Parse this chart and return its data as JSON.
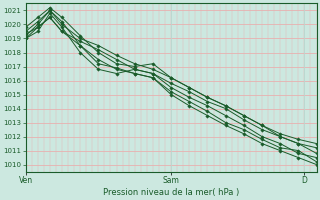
{
  "title": "Pression niveau de la mer( hPa )",
  "ylim": [
    1009.5,
    1021.5
  ],
  "xlim": [
    0,
    48
  ],
  "yticks": [
    1010,
    1011,
    1012,
    1013,
    1014,
    1015,
    1016,
    1017,
    1018,
    1019,
    1020,
    1021
  ],
  "xtick_positions": [
    0,
    24,
    46
  ],
  "xtick_labels": [
    "Ven",
    "Sam",
    "D"
  ],
  "background_color": "#cce8e0",
  "grid_color_h": "#e8b0b0",
  "grid_color_v": "#b8d8d0",
  "line_color": "#1a5c2a",
  "lines": [
    {
      "x": [
        0,
        2,
        4,
        6,
        9,
        12,
        15,
        18,
        21,
        24,
        27,
        30,
        33,
        36,
        39,
        42,
        45,
        48
      ],
      "y": [
        1019.3,
        1019.8,
        1020.5,
        1019.5,
        1018.8,
        1018.2,
        1017.5,
        1016.8,
        1016.5,
        1015.8,
        1015.2,
        1014.5,
        1014.0,
        1013.2,
        1012.5,
        1012.0,
        1011.5,
        1011.2
      ]
    },
    {
      "x": [
        0,
        2,
        4,
        6,
        9,
        12,
        15,
        18,
        21,
        24,
        27,
        30,
        33,
        36,
        39,
        42,
        45,
        48
      ],
      "y": [
        1019.5,
        1020.2,
        1021.0,
        1020.0,
        1019.0,
        1018.5,
        1017.8,
        1017.2,
        1016.8,
        1016.2,
        1015.5,
        1014.8,
        1014.2,
        1013.5,
        1012.8,
        1012.2,
        1011.8,
        1011.5
      ]
    },
    {
      "x": [
        0,
        2,
        4,
        6,
        9,
        12,
        15,
        18,
        21,
        24,
        27,
        30,
        33,
        36,
        39,
        42,
        45,
        48
      ],
      "y": [
        1019.0,
        1019.5,
        1020.8,
        1019.8,
        1018.0,
        1016.8,
        1016.5,
        1016.8,
        1016.5,
        1015.5,
        1014.8,
        1014.2,
        1013.5,
        1012.8,
        1012.0,
        1011.5,
        1010.8,
        1010.5
      ]
    },
    {
      "x": [
        0,
        2,
        4,
        6,
        9,
        12,
        15,
        18,
        21,
        24,
        27,
        30,
        33,
        36,
        39,
        42,
        45,
        48
      ],
      "y": [
        1019.8,
        1020.5,
        1021.2,
        1020.5,
        1019.2,
        1018.0,
        1017.2,
        1017.0,
        1017.2,
        1016.2,
        1015.5,
        1014.8,
        1014.2,
        1013.5,
        1012.8,
        1012.0,
        1011.5,
        1010.8
      ]
    },
    {
      "x": [
        0,
        2,
        4,
        6,
        9,
        12,
        15,
        18,
        21,
        24,
        27,
        30,
        33,
        36,
        39,
        42,
        45,
        48
      ],
      "y": [
        1019.2,
        1020.0,
        1021.0,
        1020.2,
        1018.5,
        1017.2,
        1016.9,
        1016.5,
        1016.2,
        1015.2,
        1014.5,
        1013.8,
        1013.0,
        1012.5,
        1011.8,
        1011.2,
        1011.0,
        1010.2
      ]
    },
    {
      "x": [
        0,
        2,
        4,
        6,
        9,
        12,
        15,
        18,
        21,
        24,
        27,
        30,
        33,
        36,
        39,
        42,
        45,
        48
      ],
      "y": [
        1019.0,
        1019.8,
        1020.5,
        1019.5,
        1018.5,
        1017.5,
        1016.8,
        1016.5,
        1016.2,
        1015.0,
        1014.2,
        1013.5,
        1012.8,
        1012.2,
        1011.5,
        1011.0,
        1010.5,
        1010.0
      ]
    }
  ]
}
